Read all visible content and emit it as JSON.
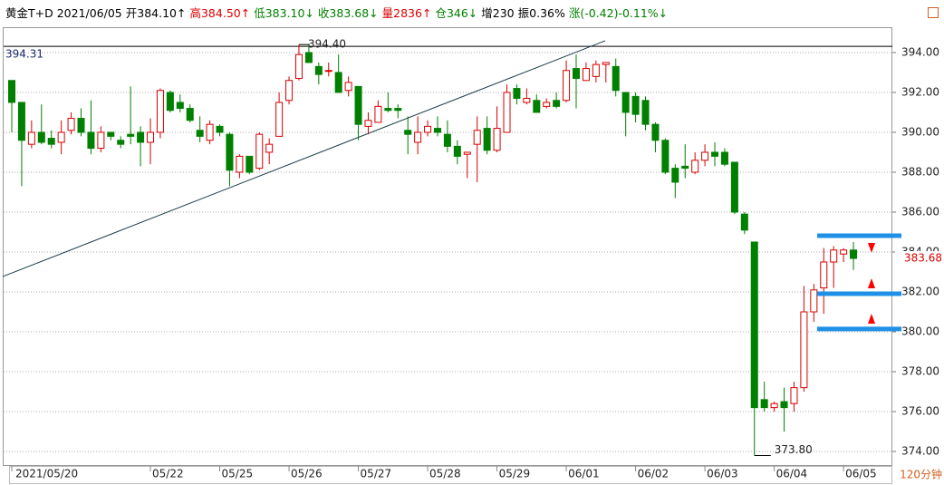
{
  "chart_data": {
    "type": "candlestick",
    "header": [
      {
        "text": "黄金T+D 2021/06/05",
        "color": "#000000"
      },
      {
        "text": "开384.10↑",
        "color": "#000000"
      },
      {
        "text": "高384.50↑",
        "color": "#d80000"
      },
      {
        "text": "低383.10↓",
        "color": "#008000"
      },
      {
        "text": "收383.68↓",
        "color": "#008000"
      },
      {
        "text": "量2836↑",
        "color": "#d80000"
      },
      {
        "text": "仓346↓",
        "color": "#008000"
      },
      {
        "text": "增230",
        "color": "#000000"
      },
      {
        "text": "振0.36%",
        "color": "#000000"
      },
      {
        "text": "涨(-0.42)-0.11%↓",
        "color": "#008000"
      }
    ],
    "period": "120分钟",
    "up_color": "#d80000",
    "down_color": "#008000",
    "categories": [
      "2021/05/20",
      null,
      null,
      null,
      null,
      null,
      null,
      null,
      null,
      null,
      null,
      null,
      null,
      null,
      "05/22",
      null,
      null,
      null,
      null,
      null,
      null,
      "05/25",
      null,
      null,
      null,
      null,
      null,
      null,
      "05/26",
      null,
      null,
      null,
      null,
      null,
      null,
      "05/27",
      null,
      null,
      null,
      null,
      null,
      null,
      "05/28",
      null,
      null,
      null,
      null,
      null,
      null,
      "05/29",
      null,
      null,
      null,
      null,
      null,
      null,
      "06/01",
      null,
      null,
      null,
      null,
      null,
      null,
      "06/02",
      null,
      null,
      null,
      null,
      null,
      null,
      "06/03",
      null,
      null,
      null,
      null,
      null,
      null,
      "06/04",
      null,
      null,
      null,
      null,
      null,
      null,
      "06/05",
      null
    ],
    "open": [
      392.6,
      391.5,
      389.4,
      390.0,
      389.7,
      389.5,
      390.1,
      390.7,
      390.0,
      389.2,
      390.0,
      389.6,
      389.9,
      390.0,
      389.5,
      390.0,
      392.0,
      391.5,
      391.2,
      390.1,
      389.6,
      390.3,
      389.9,
      388.0,
      388.8,
      388.2,
      389.0,
      389.8,
      391.6,
      392.7,
      394.0,
      393.3,
      393.1,
      393.0,
      392.1,
      392.3,
      390.3,
      390.5,
      391.2,
      391.2,
      390.1,
      389.5,
      390.0,
      390.2,
      389.9,
      389.3,
      388.9,
      389.4,
      390.2,
      389.1,
      390.0,
      392.2,
      391.5,
      391.6,
      391.3,
      391.6,
      391.6,
      393.2,
      392.6,
      392.8,
      393.4,
      393.3,
      392.0,
      391.8,
      391.6,
      390.4,
      389.6,
      388.2,
      388.3,
      388.0,
      388.6,
      389.0,
      389.0,
      388.5,
      385.9,
      384.5,
      376.6,
      376.2,
      376.5,
      376.4,
      377.2,
      381.0,
      382.2,
      383.5,
      383.9,
      384.1
    ],
    "high": [
      392.6,
      391.5,
      390.6,
      391.4,
      390.1,
      390.6,
      391.0,
      391.2,
      391.6,
      390.3,
      390.0,
      389.8,
      392.3,
      390.3,
      390.7,
      392.2,
      392.1,
      391.9,
      391.4,
      390.8,
      390.6,
      390.4,
      390.0,
      388.9,
      388.8,
      390.0,
      389.7,
      392.0,
      392.8,
      394.4,
      394.4,
      393.5,
      393.5,
      393.9,
      392.8,
      392.3,
      391.0,
      391.6,
      392.0,
      391.4,
      390.8,
      390.8,
      390.6,
      390.8,
      390.6,
      389.6,
      389.0,
      390.8,
      390.8,
      391.3,
      392.4,
      392.4,
      392.2,
      391.9,
      391.7,
      392.0,
      393.6,
      393.9,
      393.5,
      393.6,
      393.5,
      393.7,
      392.0,
      392.0,
      391.8,
      390.5,
      389.7,
      388.4,
      389.4,
      389.0,
      389.4,
      389.5,
      389.2,
      388.5,
      386.0,
      384.5,
      377.5,
      376.5,
      377.2,
      377.5,
      382.3,
      382.4,
      384.2,
      384.3,
      384.2,
      384.5
    ],
    "low": [
      390.0,
      387.3,
      389.2,
      389.4,
      389.2,
      388.9,
      389.9,
      389.8,
      388.9,
      389.0,
      389.6,
      389.2,
      389.4,
      388.3,
      388.4,
      389.7,
      391.0,
      391.0,
      390.5,
      389.5,
      389.4,
      389.8,
      387.3,
      387.7,
      387.9,
      388.1,
      388.4,
      389.8,
      391.4,
      392.6,
      393.5,
      392.4,
      392.8,
      392.2,
      391.8,
      389.6,
      389.9,
      390.5,
      391.0,
      390.7,
      388.9,
      388.9,
      389.8,
      389.8,
      389.0,
      388.4,
      387.7,
      387.5,
      388.9,
      389.0,
      390.0,
      391.4,
      391.4,
      391.0,
      391.2,
      391.2,
      391.5,
      391.2,
      392.6,
      392.5,
      392.5,
      391.8,
      389.8,
      390.5,
      390.1,
      389.0,
      387.9,
      386.7,
      387.7,
      387.9,
      388.3,
      388.3,
      388.3,
      385.9,
      384.9,
      373.8,
      376.0,
      376.0,
      375.0,
      376.0,
      377.0,
      380.5,
      380.9,
      382.2,
      383.5,
      383.1
    ],
    "close": [
      391.5,
      389.6,
      390.0,
      389.5,
      389.4,
      390.0,
      390.7,
      390.0,
      389.2,
      390.0,
      389.8,
      389.4,
      389.8,
      389.5,
      390.0,
      392.1,
      391.1,
      391.2,
      390.6,
      389.8,
      390.4,
      390.0,
      388.1,
      388.8,
      388.0,
      389.9,
      389.4,
      391.5,
      392.6,
      393.9,
      393.5,
      392.9,
      393.1,
      392.0,
      392.5,
      390.4,
      390.6,
      391.3,
      391.1,
      391.1,
      389.9,
      390.0,
      390.3,
      390.0,
      389.3,
      388.8,
      389.0,
      390.1,
      389.1,
      390.2,
      392.0,
      391.7,
      391.7,
      391.0,
      391.5,
      391.3,
      393.1,
      392.7,
      393.2,
      393.4,
      393.5,
      392.1,
      391.0,
      390.9,
      390.4,
      389.6,
      388.0,
      387.5,
      388.2,
      388.6,
      389.0,
      388.8,
      388.4,
      386.0,
      385.1,
      376.2,
      376.2,
      376.4,
      376.2,
      377.2,
      381.0,
      382.1,
      383.5,
      384.1,
      384.1,
      383.68
    ],
    "ylim": [
      373.32,
      395.27
    ],
    "yticks": [
      {
        "value": 374,
        "label": "374.00"
      },
      {
        "value": 376,
        "label": "376.00"
      },
      {
        "value": 378,
        "label": "378.00"
      },
      {
        "value": 380,
        "label": "380.00"
      },
      {
        "value": 382,
        "label": "382.00"
      },
      {
        "value": 384,
        "label": "384.00"
      },
      {
        "value": 386,
        "label": "386.00"
      },
      {
        "value": 388,
        "label": "388.00"
      },
      {
        "value": 390,
        "label": "390.00"
      },
      {
        "value": 392,
        "label": "392.00"
      },
      {
        "value": 394,
        "label": "394.00"
      }
    ],
    "grid": true,
    "reference_line": 394.31,
    "high_label": {
      "value": 394.4,
      "label": "394.40"
    },
    "low_label": {
      "value": 373.8,
      "label": "373.80"
    },
    "last_price": 383.68,
    "trend_line": [
      382.77,
      394.59
    ],
    "levels": [
      384.82,
      381.91,
      380.14
    ],
    "level_color": "#1e90e6"
  }
}
